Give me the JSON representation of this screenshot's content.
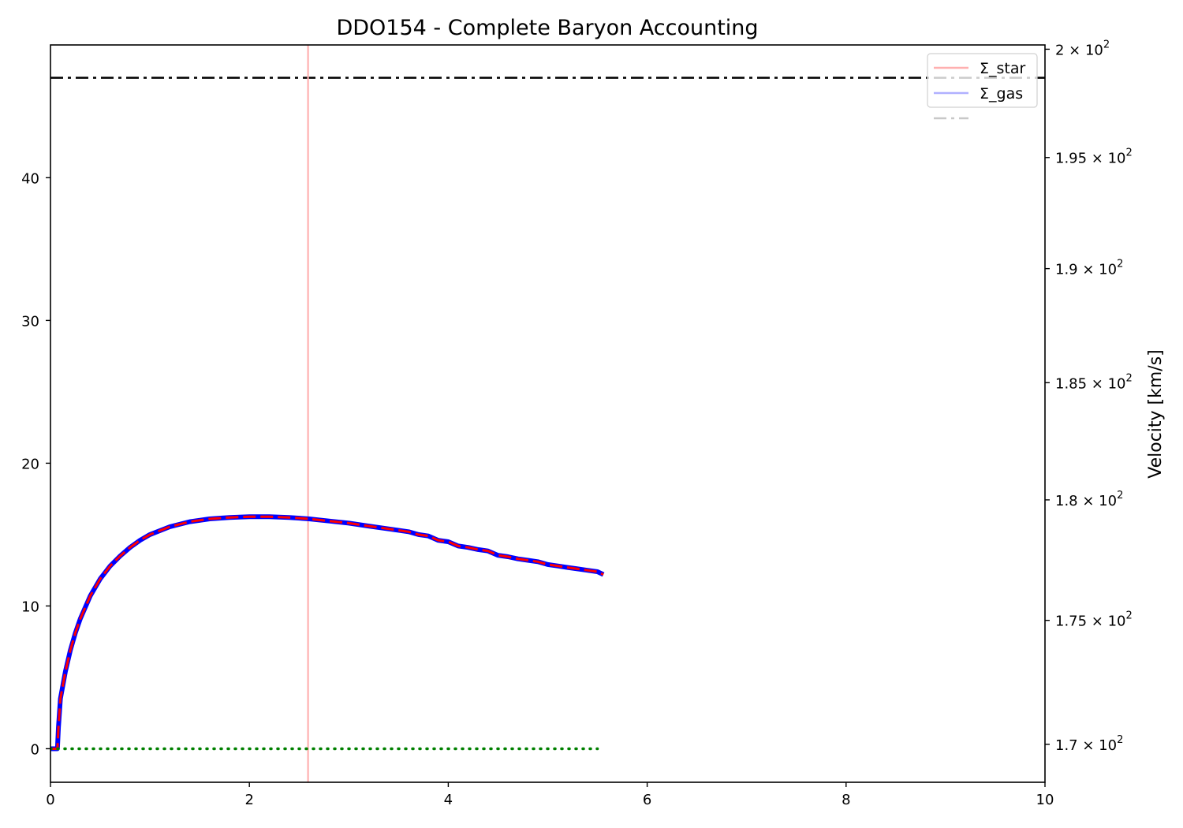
{
  "chart_data": {
    "type": "line",
    "title": "DDO154 - Complete Baryon Accounting",
    "xlabel": "",
    "ylabel": "",
    "ylabel_right": "Velocity [km/s]",
    "xlim": [
      0,
      10
    ],
    "ylim": [
      -2.35,
      49.3
    ],
    "ylim_right": [
      168.5,
      200.2
    ],
    "y_right_scale": "log",
    "grid": false,
    "legend_placement": "top-right",
    "x_ticks": [
      0,
      2,
      4,
      6,
      8,
      10
    ],
    "x_tick_labels": [
      "0",
      "2",
      "4",
      "6",
      "8",
      "10"
    ],
    "y_ticks": [
      0,
      10,
      20,
      30,
      40
    ],
    "y_tick_labels": [
      "0",
      "10",
      "20",
      "30",
      "40"
    ],
    "y_right_ticks": [
      170,
      175,
      180,
      185,
      190,
      195,
      200
    ],
    "y_right_tick_mantissas": [
      "1.7",
      "1.75",
      "1.8",
      "1.85",
      "1.9",
      "1.95",
      "2"
    ],
    "y_right_tick_base": "10",
    "y_right_tick_exponent": "2",
    "y_right_tick_times": "×",
    "legend": [
      {
        "label": "Σ_star",
        "color": "#ffb0b0",
        "dash": "solid"
      },
      {
        "label": "Σ_gas",
        "color": "#b0b0ff",
        "dash": "solid"
      },
      {
        "label": "",
        "color": "#c8c8c8",
        "dash": "dashdot"
      }
    ],
    "series": [
      {
        "role": "velocity-blue",
        "color": "#0000ff",
        "dash": "solid",
        "x": [
          0.0,
          0.07,
          0.08,
          0.1,
          0.15,
          0.2,
          0.25,
          0.3,
          0.4,
          0.5,
          0.6,
          0.7,
          0.8,
          0.9,
          1.0,
          1.2,
          1.4,
          1.6,
          1.8,
          2.0,
          2.2,
          2.4,
          2.6,
          2.8,
          3.0,
          3.2,
          3.4,
          3.6,
          3.7,
          3.8,
          3.9,
          4.0,
          4.1,
          4.2,
          4.3,
          4.4,
          4.5,
          4.6,
          4.7,
          4.8,
          4.9,
          5.0,
          5.1,
          5.2,
          5.3,
          5.4,
          5.5,
          5.56
        ],
        "values": [
          0.0,
          0.0,
          1.5,
          3.5,
          5.4,
          6.9,
          8.1,
          9.1,
          10.7,
          11.9,
          12.8,
          13.5,
          14.1,
          14.6,
          15.0,
          15.55,
          15.9,
          16.1,
          16.2,
          16.25,
          16.25,
          16.2,
          16.1,
          15.95,
          15.8,
          15.6,
          15.4,
          15.2,
          15.0,
          14.9,
          14.6,
          14.5,
          14.2,
          14.1,
          13.95,
          13.85,
          13.55,
          13.45,
          13.3,
          13.2,
          13.1,
          12.9,
          12.8,
          12.7,
          12.6,
          12.5,
          12.4,
          12.2
        ]
      },
      {
        "role": "velocity-red-dashed",
        "color": "#ff0000",
        "dash": "dashed",
        "x": [
          0.0,
          0.07,
          0.08,
          0.1,
          0.15,
          0.2,
          0.25,
          0.3,
          0.4,
          0.5,
          0.6,
          0.7,
          0.8,
          0.9,
          1.0,
          1.2,
          1.4,
          1.6,
          1.8,
          2.0,
          2.2,
          2.4,
          2.6,
          2.8,
          3.0,
          3.2,
          3.4,
          3.6,
          3.7,
          3.8,
          3.9,
          4.0,
          4.1,
          4.2,
          4.3,
          4.4,
          4.5,
          4.6,
          4.7,
          4.8,
          4.9,
          5.0,
          5.1,
          5.2,
          5.3,
          5.4,
          5.5,
          5.56
        ],
        "values": [
          0.0,
          0.0,
          1.5,
          3.5,
          5.4,
          6.9,
          8.1,
          9.1,
          10.7,
          11.9,
          12.8,
          13.5,
          14.1,
          14.6,
          15.0,
          15.55,
          15.9,
          16.1,
          16.2,
          16.25,
          16.25,
          16.2,
          16.1,
          15.95,
          15.8,
          15.6,
          15.4,
          15.2,
          15.0,
          14.9,
          14.6,
          14.5,
          14.2,
          14.1,
          13.95,
          13.85,
          13.55,
          13.45,
          13.3,
          13.2,
          13.1,
          12.9,
          12.8,
          12.7,
          12.6,
          12.5,
          12.4,
          12.2
        ]
      },
      {
        "role": "green-dotted",
        "color": "#008000",
        "dash": "dotted",
        "x": [
          0.0,
          5.5
        ],
        "values": [
          0.0,
          0.0
        ]
      }
    ],
    "reference_lines": [
      {
        "orientation": "horizontal",
        "value": 47.0,
        "color": "#000000",
        "dash": "dashdot"
      },
      {
        "orientation": "vertical",
        "value": 2.59,
        "color": "#ffb0b0",
        "dash": "solid"
      }
    ]
  }
}
